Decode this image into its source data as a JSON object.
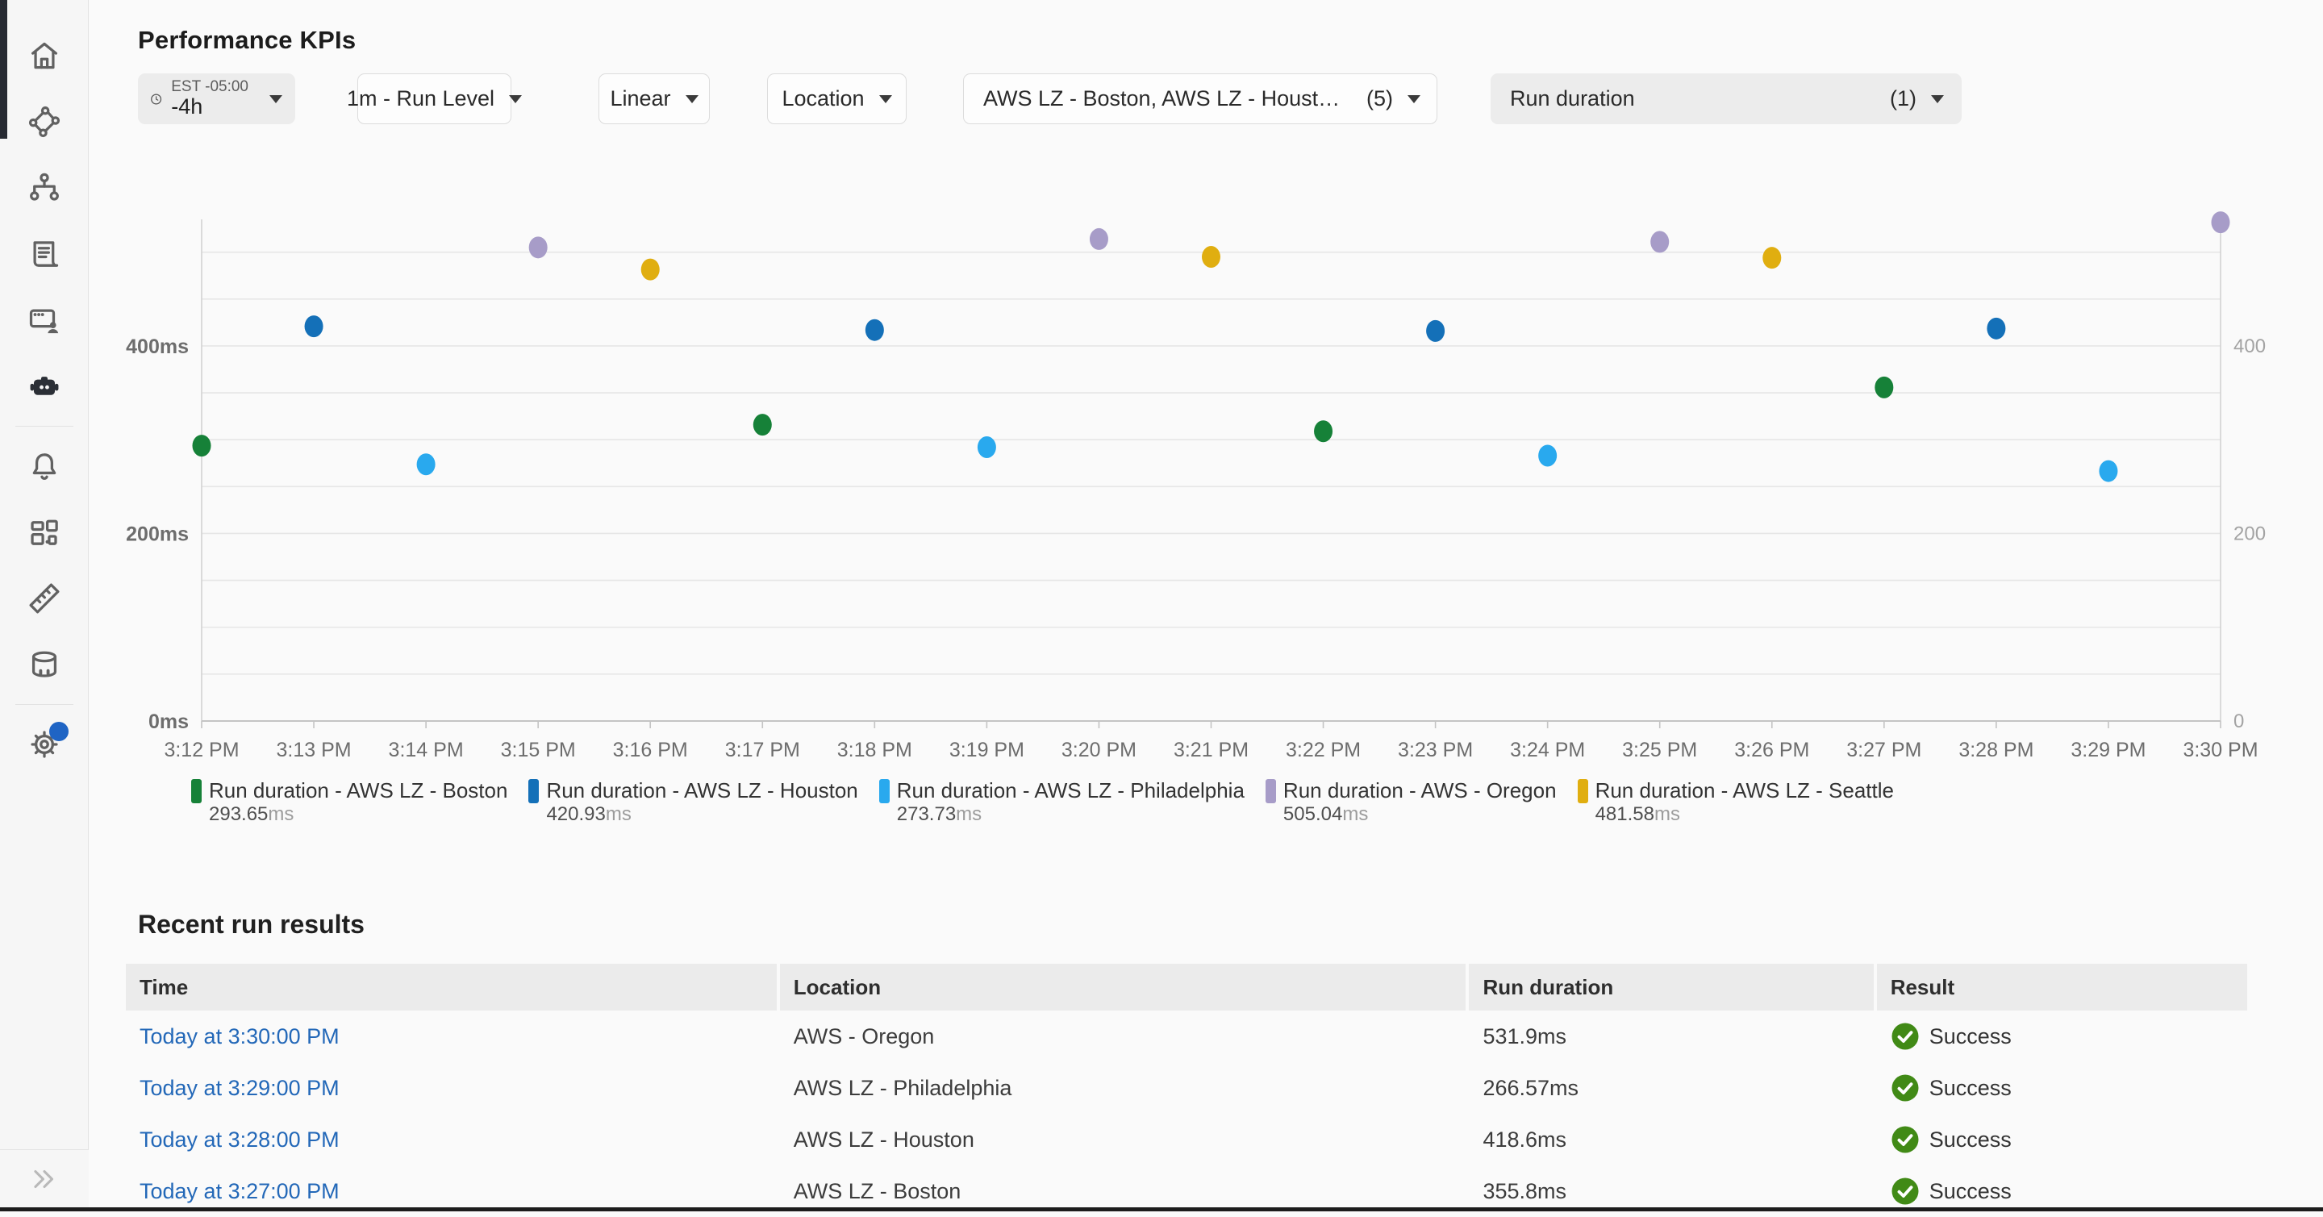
{
  "header": {
    "title": "Performance KPIs"
  },
  "sidebar": {
    "items": [
      {
        "icon": "home-icon",
        "name": "home"
      },
      {
        "icon": "traces-icon",
        "name": "traces"
      },
      {
        "icon": "hierarchy-icon",
        "name": "groups"
      },
      {
        "icon": "script-icon",
        "name": "scripts"
      },
      {
        "icon": "browser-user-icon",
        "name": "sessions"
      },
      {
        "icon": "robot-icon",
        "name": "synthetics",
        "active": true,
        "divider_after": true
      },
      {
        "icon": "bell-icon",
        "name": "alerts"
      },
      {
        "icon": "apps-icon",
        "name": "dashboards"
      },
      {
        "icon": "ruler-icon",
        "name": "measurements"
      },
      {
        "icon": "database-icon",
        "name": "data",
        "divider_after": true
      },
      {
        "icon": "gear-icon",
        "name": "settings",
        "badge": true
      }
    ],
    "collapse_icon": "chevrons-right-icon"
  },
  "filters": {
    "time": {
      "timezone": "EST -05:00",
      "range": "-4h"
    },
    "run_level": {
      "label": "1m - Run Level"
    },
    "scale": {
      "label": "Linear"
    },
    "group_by": {
      "label": "Location"
    },
    "locations": {
      "label": "AWS LZ - Boston, AWS LZ - Houston,...",
      "count": "(5)"
    },
    "metric": {
      "label": "Run duration",
      "count": "(1)"
    }
  },
  "chart_data": {
    "type": "scatter",
    "title": "",
    "xlabel": "",
    "ylabel": "",
    "x_ticks": [
      "3:12 PM",
      "3:13 PM",
      "3:14 PM",
      "3:15 PM",
      "3:16 PM",
      "3:17 PM",
      "3:18 PM",
      "3:19 PM",
      "3:20 PM",
      "3:21 PM",
      "3:22 PM",
      "3:23 PM",
      "3:24 PM",
      "3:25 PM",
      "3:26 PM",
      "3:27 PM",
      "3:28 PM",
      "3:29 PM",
      "3:30 PM"
    ],
    "ylim": [
      0,
      535
    ],
    "grid_step_ms": 50,
    "y_ticks": [
      {
        "value": 0,
        "left_label": "0ms",
        "right_label": "0"
      },
      {
        "value": 200,
        "left_label": "200ms",
        "right_label": "200"
      },
      {
        "value": 400,
        "left_label": "400ms",
        "right_label": "400"
      }
    ],
    "grid": true,
    "legend_position": "bottom",
    "series": [
      {
        "name": "Run duration - AWS LZ - Boston",
        "color": "#168138",
        "points": [
          {
            "x": "3:12 PM",
            "y": 293.65
          },
          {
            "x": "3:17 PM",
            "y": 316
          },
          {
            "x": "3:22 PM",
            "y": 309
          },
          {
            "x": "3:27 PM",
            "y": 355.8
          }
        ]
      },
      {
        "name": "Run duration - AWS LZ - Houston",
        "color": "#1470b8",
        "points": [
          {
            "x": "3:13 PM",
            "y": 420.93
          },
          {
            "x": "3:18 PM",
            "y": 417
          },
          {
            "x": "3:23 PM",
            "y": 416
          },
          {
            "x": "3:28 PM",
            "y": 418.6
          }
        ]
      },
      {
        "name": "Run duration - AWS LZ - Philadelphia",
        "color": "#29a9ee",
        "points": [
          {
            "x": "3:14 PM",
            "y": 273.73
          },
          {
            "x": "3:19 PM",
            "y": 292
          },
          {
            "x": "3:24 PM",
            "y": 283
          },
          {
            "x": "3:29 PM",
            "y": 266.57
          }
        ]
      },
      {
        "name": "Run duration - AWS - Oregon",
        "color": "#a79cc8",
        "points": [
          {
            "x": "3:15 PM",
            "y": 505.04
          },
          {
            "x": "3:20 PM",
            "y": 514
          },
          {
            "x": "3:25 PM",
            "y": 511
          },
          {
            "x": "3:30 PM",
            "y": 531.9
          }
        ]
      },
      {
        "name": "Run duration - AWS LZ - Seattle",
        "color": "#e0ae10",
        "points": [
          {
            "x": "3:16 PM",
            "y": 481.58
          },
          {
            "x": "3:21 PM",
            "y": 495
          },
          {
            "x": "3:26 PM",
            "y": 494
          }
        ]
      }
    ]
  },
  "legend": [
    {
      "label": "Run duration - AWS LZ - Boston",
      "value": "293.65",
      "unit": "ms",
      "color": "#168138"
    },
    {
      "label": "Run duration - AWS LZ - Houston",
      "value": "420.93",
      "unit": "ms",
      "color": "#1470b8"
    },
    {
      "label": "Run duration - AWS LZ - Philadelphia",
      "value": "273.73",
      "unit": "ms",
      "color": "#29a9ee"
    },
    {
      "label": "Run duration - AWS - Oregon",
      "value": "505.04",
      "unit": "ms",
      "color": "#a79cc8"
    },
    {
      "label": "Run duration - AWS LZ - Seattle",
      "value": "481.58",
      "unit": "ms",
      "color": "#e0ae10"
    }
  ],
  "table": {
    "title": "Recent run results",
    "columns": [
      "Time",
      "Location",
      "Run duration",
      "Result"
    ],
    "success_color": "#418a16",
    "rows": [
      {
        "time": "Today at 3:30:00 PM",
        "location": "AWS - Oregon",
        "duration": "531.9ms",
        "result": "Success"
      },
      {
        "time": "Today at 3:29:00 PM",
        "location": "AWS LZ - Philadelphia",
        "duration": "266.57ms",
        "result": "Success"
      },
      {
        "time": "Today at 3:28:00 PM",
        "location": "AWS LZ - Houston",
        "duration": "418.6ms",
        "result": "Success"
      },
      {
        "time": "Today at 3:27:00 PM",
        "location": "AWS LZ - Boston",
        "duration": "355.8ms",
        "result": "Success"
      }
    ]
  }
}
